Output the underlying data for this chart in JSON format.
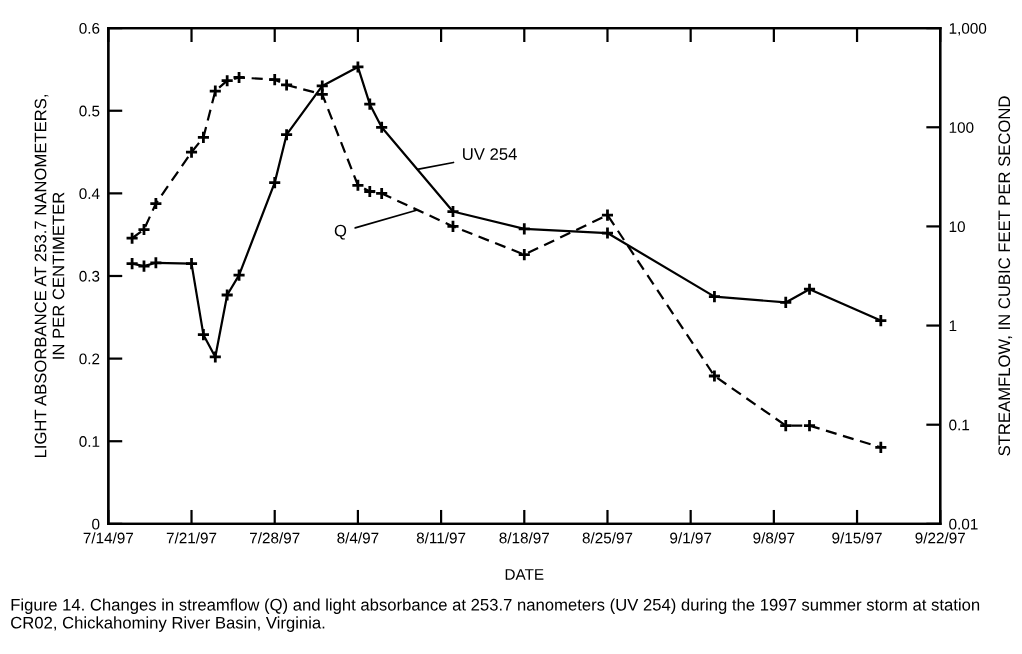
{
  "chart_data": {
    "type": "line",
    "xlabel": "DATE",
    "ylabel": "LIGHT ABSORBANCE AT 253.7 NANOMETERS,\nIN PER CENTIMETER",
    "y2label": "STREAMFLOW, IN CUBIC FEET PER SECOND",
    "log": "y2",
    "marker": "cross",
    "legend": false,
    "grid": false,
    "xlim": [
      "1997-07-14",
      "1997-09-22"
    ],
    "xticks": [
      {
        "value": "1997-07-14",
        "label": "7/14/97"
      },
      {
        "value": "1997-07-21",
        "label": "7/21/97"
      },
      {
        "value": "1997-07-28",
        "label": "7/28/97"
      },
      {
        "value": "1997-08-04",
        "label": "8/4/97"
      },
      {
        "value": "1997-08-11",
        "label": "8/11/97"
      },
      {
        "value": "1997-08-18",
        "label": "8/18/97"
      },
      {
        "value": "1997-08-25",
        "label": "8/25/97"
      },
      {
        "value": "1997-09-01",
        "label": "9/1/97"
      },
      {
        "value": "1997-09-08",
        "label": "9/8/97"
      },
      {
        "value": "1997-09-15",
        "label": "9/15/97"
      },
      {
        "value": "1997-09-22",
        "label": "9/22/97"
      }
    ],
    "ylim": [
      0,
      0.6
    ],
    "yticks": [
      0,
      0.1,
      0.2,
      0.3,
      0.4,
      0.5,
      0.6
    ],
    "y2lim": [
      0.01,
      1000
    ],
    "y2ticks": [
      0.01,
      0.1,
      1,
      10,
      100,
      {
        "value": 1000,
        "label": "1,000"
      }
    ],
    "series": [
      {
        "name": "UV 254",
        "color": "#000000",
        "line_style": "solid",
        "x": [
          "1997-07-16",
          "1997-07-17",
          "1997-07-18",
          "1997-07-21",
          "1997-07-22",
          "1997-07-23",
          "1997-07-24",
          "1997-07-25",
          "1997-07-28",
          "1997-07-29",
          "1997-08-01",
          "1997-08-04",
          "1997-08-05",
          "1997-08-06",
          "1997-08-12",
          "1997-08-18",
          "1997-08-25",
          "1997-09-03",
          "1997-09-09",
          "1997-09-11",
          "1997-09-17"
        ],
        "values": [
          0.315,
          0.312,
          0.316,
          0.315,
          0.229,
          0.202,
          0.277,
          0.301,
          0.413,
          0.471,
          0.53,
          0.553,
          0.508,
          0.48,
          0.378,
          0.357,
          0.352,
          0.275,
          0.268,
          0.284,
          0.246
        ]
      },
      {
        "name": "Q",
        "color": "#000000",
        "line_style": "dashed",
        "axis": "y2",
        "x": [
          "1997-07-16",
          "1997-07-17",
          "1997-07-18",
          "1997-07-21",
          "1997-07-22",
          "1997-07-23",
          "1997-07-24",
          "1997-07-25",
          "1997-07-28",
          "1997-07-29",
          "1997-08-01",
          "1997-08-04",
          "1997-08-05",
          "1997-08-06",
          "1997-08-12",
          "1997-08-18",
          "1997-08-25",
          "1997-09-03",
          "1997-09-09",
          "1997-09-11",
          "1997-09-17"
        ],
        "values": [
          7.6,
          9.3,
          17,
          56,
          79,
          232,
          295,
          318,
          302,
          267,
          215,
          26,
          22.5,
          21.5,
          10,
          5.2,
          13,
          0.31,
          0.098,
          0.098,
          0.059
        ]
      }
    ],
    "annotations": [
      "Figure 14. Changes in streamflow (Q) and light absorbance at 253.7 nanometers (UV 254) during the 1997 summer storm at station CR02, Chickahominy River Basin, Virginia."
    ]
  }
}
